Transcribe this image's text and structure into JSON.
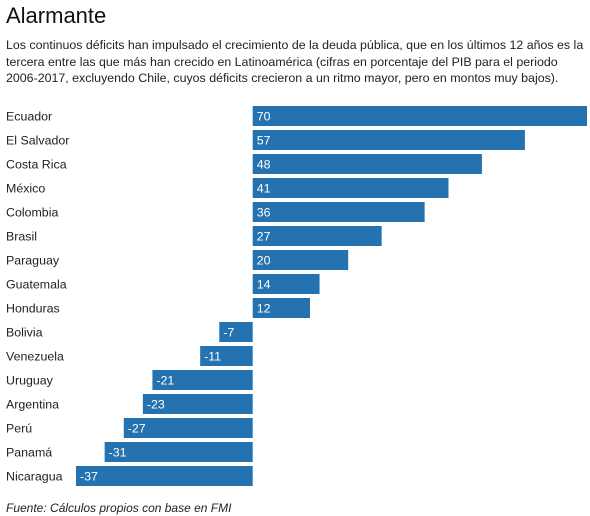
{
  "title": "Alarmante",
  "subtitle": "Los continuos déficits han impulsado el crecimiento de la deuda pública, que en los últimos 12 años es la tercera entre las que más han crecido en Latinoamérica (cifras en porcentaje del PIB para el periodo 2006-2017, excluyendo Chile, cuyos déficits crecieron a un ritmo mayor, pero en montos muy bajos).",
  "source": "Fuente: Cálculos propios con base en FMI",
  "colors": {
    "bar": "#2472b0",
    "value_text": "#ffffff"
  },
  "chart_data": {
    "type": "bar",
    "orientation": "horizontal",
    "categories": [
      "Ecuador",
      "El Salvador",
      "Costa Rica",
      "México",
      "Colombia",
      "Brasil",
      "Paraguay",
      "Guatemala",
      "Honduras",
      "Bolivia",
      "Venezuela",
      "Uruguay",
      "Argentina",
      "Perú",
      "Panamá",
      "Nicaragua"
    ],
    "values": [
      70,
      57,
      48,
      41,
      36,
      27,
      20,
      14,
      12,
      -7,
      -11,
      -21,
      -23,
      -27,
      -31,
      -37
    ],
    "xlim": [
      -37,
      70
    ],
    "grid": false,
    "legend": "none"
  }
}
